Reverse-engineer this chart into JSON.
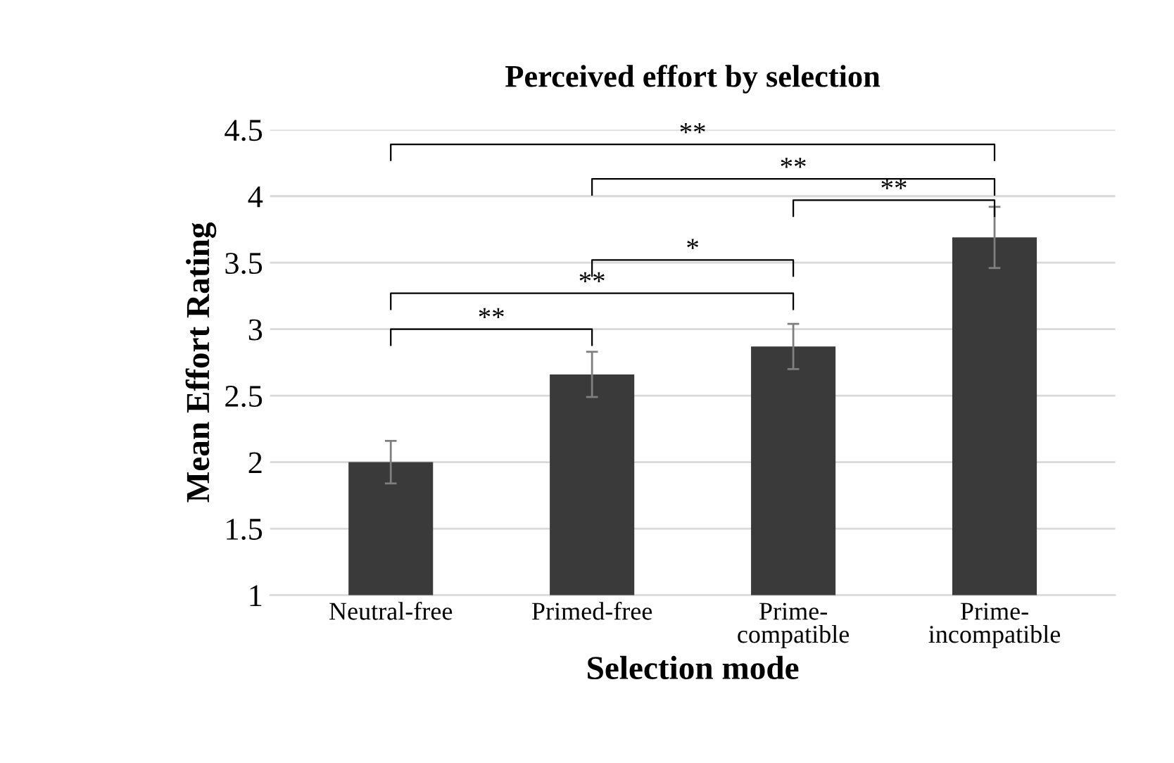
{
  "chart_data": {
    "type": "bar",
    "title": "Perceived effort by selection",
    "xlabel": "Selection mode",
    "ylabel": "Mean Effort Rating",
    "categories": [
      "Neutral-free",
      "Primed-free",
      "Prime-\ncompatible",
      "Prime-\nincompatible"
    ],
    "values": [
      2.0,
      2.66,
      2.87,
      3.69
    ],
    "errors": [
      0.16,
      0.17,
      0.17,
      0.23
    ],
    "color": "#3a3a3a",
    "ylim": [
      1,
      4.5
    ],
    "yticks": [
      1,
      1.5,
      2,
      2.5,
      3,
      3.5,
      4,
      4.5
    ],
    "grid": "y",
    "annotations": [
      "**",
      "**",
      "**",
      "*",
      "**",
      "**"
    ]
  }
}
